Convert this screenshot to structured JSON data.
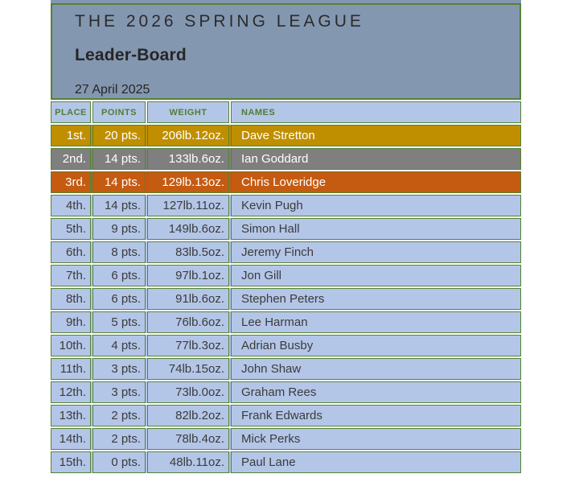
{
  "header": {
    "title": "THE 2026 SPRING LEAGUE",
    "subtitle": "Leader-Board",
    "date": "27 April 2025"
  },
  "table": {
    "columns": [
      "PLACE",
      "POINTS",
      "WEIGHT",
      "NAMES"
    ],
    "rows": [
      {
        "place": "1st.",
        "points": "20 pts.",
        "weight": "206lb.12oz.",
        "name": "Dave Stretton",
        "highlight": "gold"
      },
      {
        "place": "2nd.",
        "points": "14 pts.",
        "weight": "133lb.6oz.",
        "name": "Ian Goddard",
        "highlight": "silver"
      },
      {
        "place": "3rd.",
        "points": "14 pts.",
        "weight": "129lb.13oz.",
        "name": "Chris Loveridge",
        "highlight": "bronze"
      },
      {
        "place": "4th.",
        "points": "14 pts.",
        "weight": "127lb.11oz.",
        "name": "Kevin Pugh",
        "highlight": "none"
      },
      {
        "place": "5th.",
        "points": "9 pts.",
        "weight": "149lb.6oz.",
        "name": "Simon Hall",
        "highlight": "none"
      },
      {
        "place": "6th.",
        "points": "8 pts.",
        "weight": "83lb.5oz.",
        "name": "Jeremy Finch",
        "highlight": "none"
      },
      {
        "place": "7th.",
        "points": "6 pts.",
        "weight": "97lb.1oz.",
        "name": "Jon Gill",
        "highlight": "none"
      },
      {
        "place": "8th.",
        "points": "6 pts.",
        "weight": "91lb.6oz.",
        "name": "Stephen Peters",
        "highlight": "none"
      },
      {
        "place": "9th.",
        "points": "5 pts.",
        "weight": "76lb.6oz.",
        "name": "Lee Harman",
        "highlight": "none"
      },
      {
        "place": "10th.",
        "points": "4 pts.",
        "weight": "77lb.3oz.",
        "name": "Adrian Busby",
        "highlight": "none"
      },
      {
        "place": "11th.",
        "points": "3 pts.",
        "weight": "74lb.15oz.",
        "name": "John Shaw",
        "highlight": "none"
      },
      {
        "place": "12th.",
        "points": "3 pts.",
        "weight": "73lb.0oz.",
        "name": "Graham Rees",
        "highlight": "none"
      },
      {
        "place": "13th.",
        "points": "2 pts.",
        "weight": "82lb.2oz.",
        "name": "Frank Edwards",
        "highlight": "none"
      },
      {
        "place": "14th.",
        "points": "2 pts.",
        "weight": "78lb.4oz.",
        "name": "Mick Perks",
        "highlight": "none"
      },
      {
        "place": "15th.",
        "points": "0 pts.",
        "weight": "48lb.11oz.",
        "name": "Paul Lane",
        "highlight": "none"
      }
    ]
  },
  "colors": {
    "gold": "#BF8F00",
    "silver": "#7F7F7F",
    "bronze": "#C55A11",
    "none": "#B4C6E7",
    "header_row": "#B4C6E7",
    "panel": "#8497B0",
    "border_green": "#548235",
    "header_text_green": "#4E7E32"
  }
}
